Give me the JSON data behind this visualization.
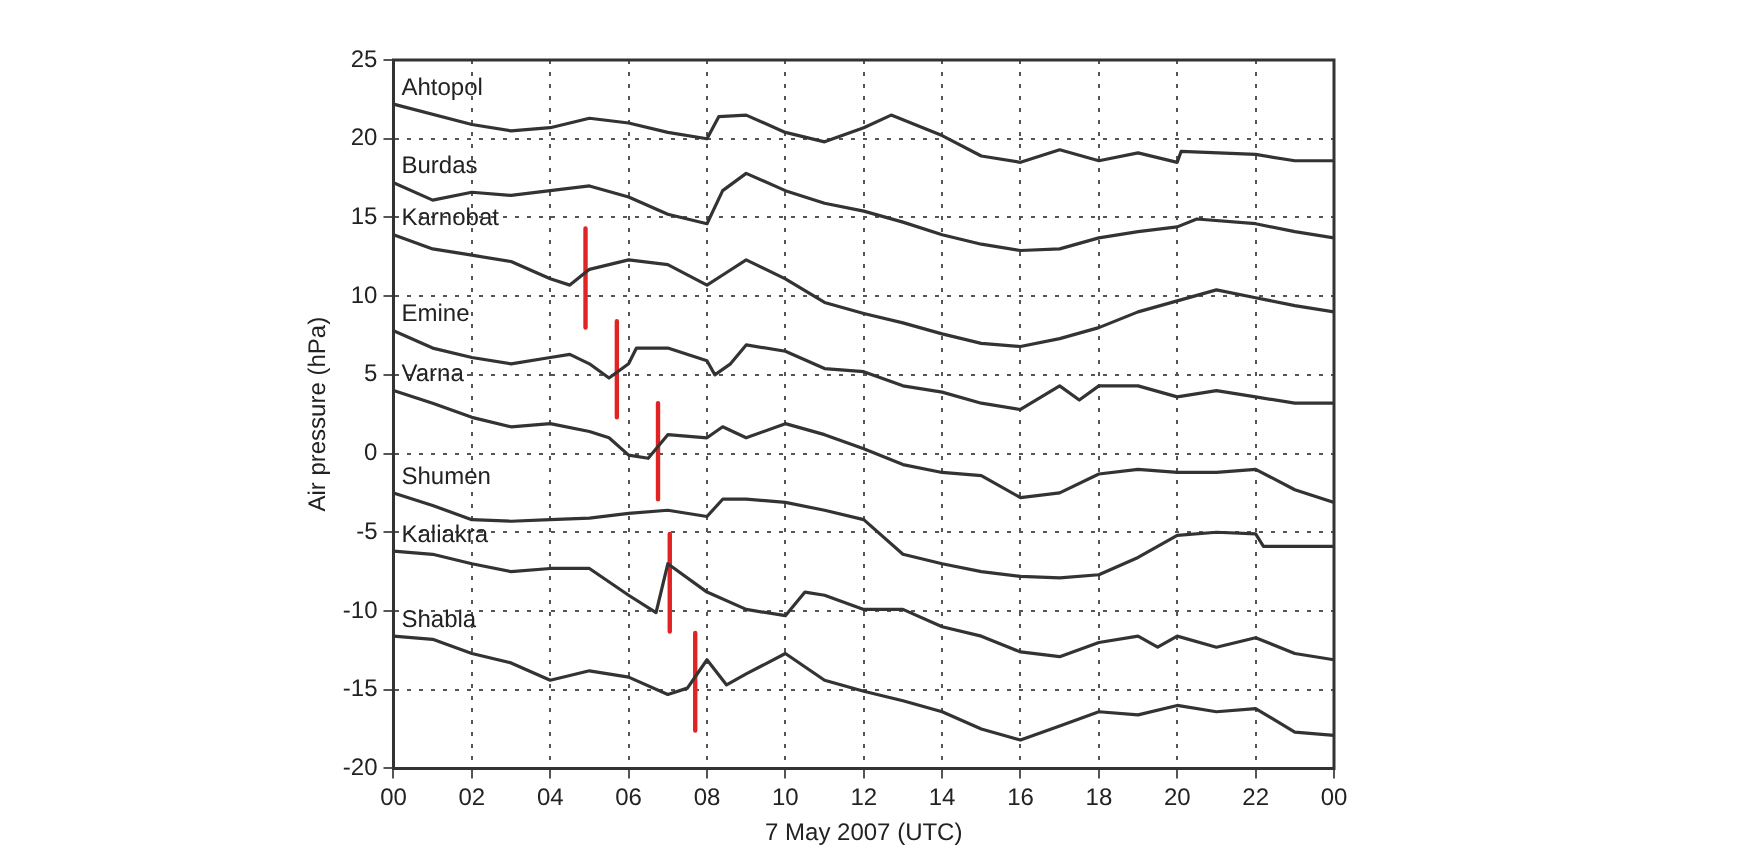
{
  "chart_data": {
    "type": "line",
    "xlabel": "7 May 2007 (UTC)",
    "ylabel": "Air pressure (hPa)",
    "xlim": [
      0,
      24
    ],
    "xticks": [
      {
        "value": 0,
        "label": "00"
      },
      {
        "value": 2,
        "label": "02"
      },
      {
        "value": 4,
        "label": "04"
      },
      {
        "value": 6,
        "label": "06"
      },
      {
        "value": 8,
        "label": "08"
      },
      {
        "value": 10,
        "label": "10"
      },
      {
        "value": 12,
        "label": "12"
      },
      {
        "value": 14,
        "label": "14"
      },
      {
        "value": 16,
        "label": "16"
      },
      {
        "value": 18,
        "label": "18"
      },
      {
        "value": 20,
        "label": "20"
      },
      {
        "value": 22,
        "label": "22"
      },
      {
        "value": 24,
        "label": "00"
      }
    ],
    "ylim": [
      -20,
      25
    ],
    "yticks": [
      -20,
      -15,
      -10,
      -5,
      0,
      5,
      10,
      15,
      20,
      25
    ],
    "grid": true,
    "legend": false,
    "marker": "none",
    "line_style": "solid",
    "series": [
      {
        "name": "Ahtopol",
        "color": "#333333",
        "x": [
          0,
          2,
          3,
          4,
          5,
          6,
          7,
          8,
          8.3,
          9,
          10,
          11,
          12,
          12.7,
          14,
          15,
          16,
          17,
          18,
          19,
          20,
          20.1,
          22,
          23,
          24
        ],
        "values": [
          22.2,
          20.9,
          20.5,
          20.7,
          21.3,
          21,
          20.4,
          20,
          21.4,
          21.5,
          20.4,
          19.8,
          20.7,
          21.5,
          20.2,
          18.9,
          18.5,
          19.3,
          18.6,
          19.1,
          18.5,
          19.2,
          19,
          18.6,
          18.6
        ]
      },
      {
        "name": "Burdas",
        "color": "#333333",
        "x": [
          0,
          1,
          2,
          3,
          4,
          5,
          6,
          7,
          8,
          8.4,
          9,
          10,
          11,
          12,
          13,
          14,
          15,
          16,
          17,
          18,
          19,
          20,
          20.5,
          22,
          23,
          24
        ],
        "values": [
          17.2,
          16.1,
          16.6,
          16.4,
          16.7,
          17,
          16.3,
          15.2,
          14.6,
          16.7,
          17.8,
          16.7,
          15.9,
          15.4,
          14.7,
          13.9,
          13.3,
          12.9,
          13,
          13.7,
          14.1,
          14.4,
          14.9,
          14.6,
          14.1,
          13.7
        ]
      },
      {
        "name": "Karnobat",
        "color": "#333333",
        "x": [
          0,
          1,
          2,
          3,
          4,
          4.5,
          5,
          6,
          7,
          8,
          8.5,
          9,
          10,
          11,
          12,
          13,
          14,
          15,
          16,
          17,
          18,
          19,
          20,
          21,
          22,
          23,
          24
        ],
        "values": [
          13.9,
          13,
          12.6,
          12.2,
          11.1,
          10.7,
          11.7,
          12.3,
          12,
          10.7,
          11.5,
          12.3,
          11.1,
          9.6,
          8.9,
          8.3,
          7.6,
          7,
          6.8,
          7.3,
          8,
          9,
          9.7,
          10.4,
          9.9,
          9.4,
          9
        ]
      },
      {
        "name": "Emine",
        "color": "#333333",
        "x": [
          0,
          1,
          2,
          3,
          4,
          4.5,
          5,
          5.5,
          6,
          6.2,
          7,
          8,
          8.2,
          8.6,
          9,
          10,
          11,
          12,
          13,
          14,
          15,
          16,
          17,
          17.5,
          18,
          19,
          20,
          21,
          22,
          23,
          24
        ],
        "values": [
          7.8,
          6.7,
          6.1,
          5.7,
          6.1,
          6.3,
          5.7,
          4.8,
          5.7,
          6.7,
          6.7,
          5.9,
          5,
          5.7,
          6.9,
          6.5,
          5.4,
          5.2,
          4.3,
          3.9,
          3.2,
          2.8,
          4.3,
          3.4,
          4.3,
          4.3,
          3.6,
          4,
          3.6,
          3.2,
          3.2
        ]
      },
      {
        "name": "Varna",
        "color": "#333333",
        "x": [
          0,
          1,
          2,
          3,
          4,
          5,
          5.5,
          6,
          6.5,
          7,
          8,
          8.4,
          9,
          10,
          11,
          12,
          13,
          14,
          15,
          16,
          17,
          18,
          19,
          20,
          21,
          22,
          23,
          24
        ],
        "values": [
          4,
          3.2,
          2.3,
          1.7,
          1.9,
          1.4,
          1,
          -0.1,
          -0.3,
          1.2,
          1,
          1.7,
          1,
          1.9,
          1.2,
          0.3,
          -0.7,
          -1.2,
          -1.4,
          -2.8,
          -2.5,
          -1.3,
          -1,
          -1.2,
          -1.2,
          -1,
          -2.3,
          -3.1
        ]
      },
      {
        "name": "Shumen",
        "color": "#333333",
        "x": [
          0,
          1,
          2,
          3,
          4,
          5,
          6,
          7,
          8,
          8.4,
          9,
          10,
          11,
          12,
          13,
          14,
          15,
          16,
          17,
          18,
          19,
          20,
          21,
          22,
          22.2,
          24
        ],
        "values": [
          -2.5,
          -3.3,
          -4.2,
          -4.3,
          -4.2,
          -4.1,
          -3.8,
          -3.6,
          -4,
          -2.9,
          -2.9,
          -3.1,
          -3.6,
          -4.2,
          -6.4,
          -7,
          -7.5,
          -7.8,
          -7.9,
          -7.7,
          -6.6,
          -5.2,
          -5,
          -5.1,
          -5.9,
          -5.9
        ]
      },
      {
        "name": "Kaliakra",
        "color": "#333333",
        "x": [
          0,
          1,
          2,
          3,
          4,
          5,
          6,
          6.7,
          7,
          8,
          9,
          10,
          10.5,
          11,
          12,
          13,
          14,
          15,
          16,
          17,
          18,
          19,
          19.5,
          20,
          21,
          22,
          23,
          24
        ],
        "values": [
          -6.2,
          -6.4,
          -7,
          -7.5,
          -7.3,
          -7.3,
          -9,
          -10.1,
          -7,
          -8.8,
          -9.9,
          -10.3,
          -8.8,
          -9,
          -9.9,
          -9.9,
          -11,
          -11.6,
          -12.6,
          -12.9,
          -12,
          -11.6,
          -12.3,
          -11.6,
          -12.3,
          -11.7,
          -12.7,
          -13.1
        ]
      },
      {
        "name": "Shabla",
        "color": "#333333",
        "x": [
          0,
          1,
          2,
          3,
          4,
          5,
          6,
          7,
          7.5,
          8,
          8.5,
          9,
          10,
          11,
          12,
          13,
          14,
          15,
          16,
          17,
          18,
          19,
          20,
          21,
          22,
          23,
          24
        ],
        "values": [
          -11.6,
          -11.8,
          -12.7,
          -13.3,
          -14.4,
          -13.8,
          -14.2,
          -15.3,
          -14.9,
          -13.1,
          -14.7,
          -14,
          -12.7,
          -14.4,
          -15.1,
          -15.7,
          -16.4,
          -17.5,
          -18.2,
          -17.3,
          -16.4,
          -16.6,
          -16,
          -16.4,
          -16.2,
          -17.7,
          -17.9
        ]
      },
      {
        "color": "#e02424",
        "x": [
          4.9,
          4.9
        ],
        "values": [
          14.3,
          8
        ]
      },
      {
        "color": "#e02424",
        "x": [
          5.7,
          5.7
        ],
        "values": [
          8.4,
          2.3
        ]
      },
      {
        "color": "#e02424",
        "x": [
          6.75,
          6.75
        ],
        "values": [
          3.2,
          -2.9
        ]
      },
      {
        "color": "#e02424",
        "x": [
          7.05,
          7.05
        ],
        "values": [
          -5.1,
          -11.3
        ]
      },
      {
        "color": "#e02424",
        "x": [
          7.7,
          7.7
        ],
        "values": [
          -11.4,
          -17.6
        ]
      }
    ]
  }
}
